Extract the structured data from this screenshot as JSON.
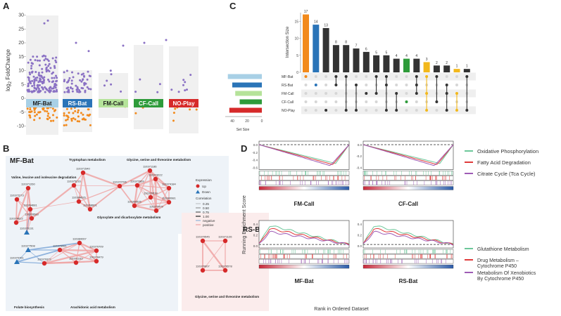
{
  "panel_letters": {
    "a": "A",
    "b": "B",
    "c": "C",
    "d": "D"
  },
  "panel_a": {
    "ylabel": "log",
    "ylabel_sub": "2",
    "ylabel_rest": " FoldChange",
    "yticks": [
      "30",
      "25",
      "20",
      "15",
      "10",
      "5",
      "0",
      "-5",
      "-10"
    ],
    "groups": [
      {
        "label": "MF-Bat",
        "color": "#a8d0e6",
        "text_color": "#1d1d1d"
      },
      {
        "label": "RS-Bat",
        "color": "#2a74b8",
        "text_color": "#ffffff"
      },
      {
        "label": "FM-Call",
        "color": "#b5e39a",
        "text_color": "#1d1d1d"
      },
      {
        "label": "CF-Call",
        "color": "#2e9b3a",
        "text_color": "#ffffff"
      },
      {
        "label": "NO-Play",
        "color": "#d62a2a",
        "text_color": "#ffffff"
      }
    ],
    "up_color": "#8a71c4",
    "down_color": "#f28a1c"
  },
  "panel_b": {
    "title_mf": "MF-Bat",
    "title_rs": "RS-Bat",
    "pathways": [
      "Valine, leucine and isoleucine degradation",
      "Tryptophan metabolism",
      "Glycine, serine and threonine metabolism",
      "Glyoxylate and dicarboxylate metabolism",
      "Folate biosynthesis",
      "Arachidonic acid metabolism",
      "Glycine, serine and threonine metabolism"
    ],
    "nodes": [
      "110371260",
      "110372273",
      "110364681",
      "110378583",
      "110374622",
      "110370131",
      "110371540",
      "110375216",
      "110384626",
      "110368601",
      "110372706",
      "110371186",
      "110373222",
      "110372869",
      "110370518",
      "110374184",
      "110380981",
      "110360526",
      "110370479",
      "110377508",
      "110376981",
      "110384267",
      "110370709",
      "110370761",
      "110379372",
      "110391163",
      "110378479",
      "110370545",
      "110371126",
      "110370607",
      "110376578"
    ],
    "legend": {
      "expression_title": "Expression",
      "up": "Up",
      "down": "Down",
      "correlation_title": "Correlation",
      "values": [
        "0.25",
        "0.50",
        "0.75",
        "1.00"
      ],
      "negative": "negative",
      "positive": "positive"
    }
  },
  "panel_c": {
    "ylabel": "Intersection Size",
    "xlabel": "Set Size",
    "sets": [
      "MF-Bat",
      "RS-Bat",
      "FM-Call",
      "CF-Call",
      "NO-Play"
    ],
    "set_colors": [
      "#a8d0e6",
      "#2a74b8",
      "#b5e39a",
      "#2e9b3a",
      "#d62a2a"
    ],
    "set_size_ticks": [
      "40",
      "20",
      "0"
    ],
    "intersection_ticks": [
      "0",
      "5",
      "10",
      "15"
    ],
    "highlight_orange": "#f28a1c",
    "highlight_blue": "#2a74b8",
    "highlight_green": "#2e9b3a",
    "highlight_yellow": "#f2b81c"
  },
  "chart_data": {
    "type": "bar",
    "title": "Intersection Size",
    "xlabel": "",
    "ylabel": "Intersection Size",
    "ylim": [
      0,
      18
    ],
    "values": [
      17,
      14,
      13,
      8,
      8,
      7,
      6,
      5,
      5,
      4,
      4,
      4,
      3,
      2,
      2,
      1,
      1
    ],
    "labels": [
      "17",
      "14",
      "13",
      "8",
      "8",
      "7",
      "6",
      "5",
      "5",
      "4",
      "4",
      "4",
      "3",
      "2",
      "2",
      "1",
      "1"
    ],
    "bar_colors": [
      "#f28a1c",
      "#2a74b8",
      "#333333",
      "#333333",
      "#333333",
      "#333333",
      "#333333",
      "#333333",
      "#333333",
      "#333333",
      "#2e9b3a",
      "#333333",
      "#f2b81c",
      "#333333",
      "#333333",
      "#f2b81c",
      "#333333"
    ],
    "set_sizes": [
      46,
      40,
      36,
      30,
      44
    ]
  },
  "panel_d": {
    "ylabel": "Running Enrichment Score",
    "xlabel": "Rank in Ordered Dataset",
    "top_legend": [
      "Oxidative Phosphorylation",
      "Fatty Acid Degradation",
      "Citrate Cycle (Tca Cycle)"
    ],
    "bottom_legend": [
      "Glutathione Metabolism",
      "Drug Metabolism – Cytochrome P450",
      "Metabolism Of Xenobiotics By Cytochrome P450"
    ],
    "legend_colors": [
      "#6cc79a",
      "#e03a3a",
      "#9e5bb5"
    ],
    "plots": [
      {
        "title": "FM-Call",
        "yticks": [
          "0.0",
          "-0.2",
          "-0.4",
          "-0.6"
        ]
      },
      {
        "title": "CF-Call",
        "yticks": [
          "0.0",
          "-0.2",
          "-0.4"
        ]
      },
      {
        "title": "MF-Bat",
        "yticks": [
          "0.4",
          "0.2",
          "0.0"
        ]
      },
      {
        "title": "RS-Bat",
        "yticks": [
          "0.4",
          "0.2",
          "0.0"
        ]
      }
    ]
  }
}
